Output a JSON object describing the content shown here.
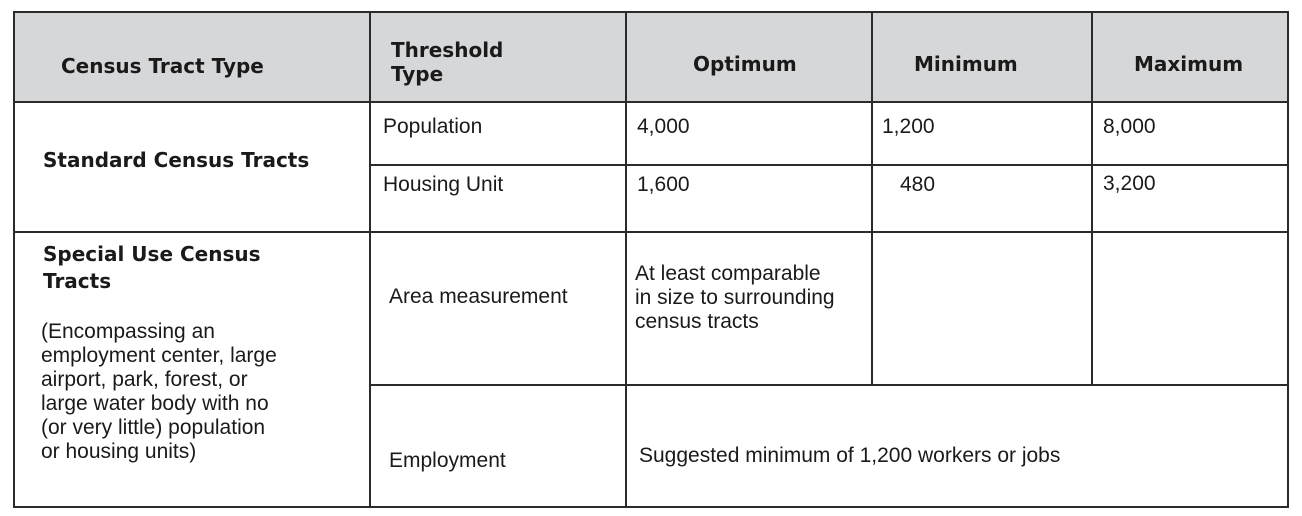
{
  "header": {
    "col1": "Census Tract Type",
    "col2_line1": "Threshold",
    "col2_line2": "Type",
    "col3": "Optimum",
    "col4": "Minimum",
    "col5": "Maximum"
  },
  "standard": {
    "label": "Standard Census Tracts",
    "rows": [
      {
        "type": "Population",
        "optimum": "4,000",
        "minimum": "1,200",
        "maximum": "8,000"
      },
      {
        "type": "Housing Unit",
        "optimum": "1,600",
        "minimum": "480",
        "maximum": "3,200"
      }
    ]
  },
  "special": {
    "label_line1": "Special Use Census",
    "label_line2": "Tracts",
    "description": "(Encompassing an\nemployment center, large\nairport, park, forest, or\nlarge water body with no\n(or very little) population\nor housing units)",
    "area_type": "Area measurement",
    "area_optimum": "At least comparable\nin size to surrounding\ncensus tracts",
    "employment_type": "Employment",
    "employment_value": "Suggested minimum of 1,200 workers or jobs"
  }
}
